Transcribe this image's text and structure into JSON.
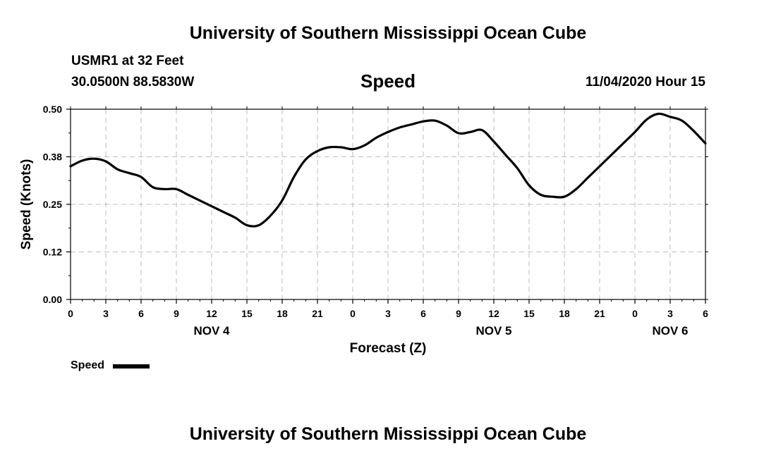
{
  "header": {
    "title_top": "University of Southern Mississippi Ocean Cube",
    "station": "USMR1 at 32 Feet",
    "coords": "30.0500N 88.5830W",
    "chart_title": "Speed",
    "datetime": "11/04/2020 Hour 15",
    "title_bottom": "University of Southern Mississippi Ocean Cube"
  },
  "legend": {
    "label": "Speed",
    "color": "#000000"
  },
  "chart_data": {
    "type": "line",
    "title": "Speed",
    "xlabel": "Forecast (Z)",
    "ylabel": "Speed (Knots)",
    "ylim": [
      0,
      0.5
    ],
    "xlim": [
      0,
      54
    ],
    "grid": true,
    "legend_placement": "bottom-left",
    "y_ticks": [
      {
        "value": 0.0,
        "label": "0.00"
      },
      {
        "value": 0.125,
        "label": "0.12"
      },
      {
        "value": 0.25,
        "label": "0.25"
      },
      {
        "value": 0.375,
        "label": "0.38"
      },
      {
        "value": 0.5,
        "label": "0.50"
      }
    ],
    "x_ticks": [
      {
        "value": 0,
        "label": "0"
      },
      {
        "value": 3,
        "label": "3"
      },
      {
        "value": 6,
        "label": "6"
      },
      {
        "value": 9,
        "label": "9"
      },
      {
        "value": 12,
        "label": "12"
      },
      {
        "value": 15,
        "label": "15"
      },
      {
        "value": 18,
        "label": "18"
      },
      {
        "value": 21,
        "label": "21"
      },
      {
        "value": 24,
        "label": "0"
      },
      {
        "value": 27,
        "label": "3"
      },
      {
        "value": 30,
        "label": "6"
      },
      {
        "value": 33,
        "label": "9"
      },
      {
        "value": 36,
        "label": "12"
      },
      {
        "value": 39,
        "label": "15"
      },
      {
        "value": 42,
        "label": "18"
      },
      {
        "value": 45,
        "label": "21"
      },
      {
        "value": 48,
        "label": "0"
      },
      {
        "value": 51,
        "label": "3"
      },
      {
        "value": 54,
        "label": "6"
      }
    ],
    "day_labels": [
      {
        "value": 12,
        "label": "NOV 4"
      },
      {
        "value": 36,
        "label": "NOV 5"
      },
      {
        "value": 51,
        "label": "NOV 6"
      }
    ],
    "series": [
      {
        "name": "Speed",
        "color": "#000000",
        "x": [
          0,
          1,
          2,
          3,
          4,
          5,
          6,
          7,
          8,
          9,
          10,
          11,
          12,
          13,
          14,
          15,
          16,
          17,
          18,
          19,
          20,
          21,
          22,
          23,
          24,
          25,
          26,
          27,
          28,
          29,
          30,
          31,
          32,
          33,
          34,
          35,
          36,
          37,
          38,
          39,
          40,
          41,
          42,
          43,
          44,
          45,
          46,
          47,
          48,
          49,
          50,
          51,
          52,
          53,
          54
        ],
        "y": [
          0.35,
          0.365,
          0.37,
          0.363,
          0.342,
          0.332,
          0.322,
          0.295,
          0.29,
          0.29,
          0.275,
          0.26,
          0.245,
          0.23,
          0.215,
          0.195,
          0.195,
          0.22,
          0.26,
          0.322,
          0.368,
          0.39,
          0.4,
          0.4,
          0.395,
          0.405,
          0.425,
          0.44,
          0.452,
          0.46,
          0.468,
          0.47,
          0.457,
          0.437,
          0.44,
          0.445,
          0.415,
          0.38,
          0.345,
          0.3,
          0.275,
          0.27,
          0.27,
          0.29,
          0.32,
          0.35,
          0.38,
          0.41,
          0.44,
          0.473,
          0.488,
          0.48,
          0.47,
          0.443,
          0.41
        ]
      }
    ]
  }
}
